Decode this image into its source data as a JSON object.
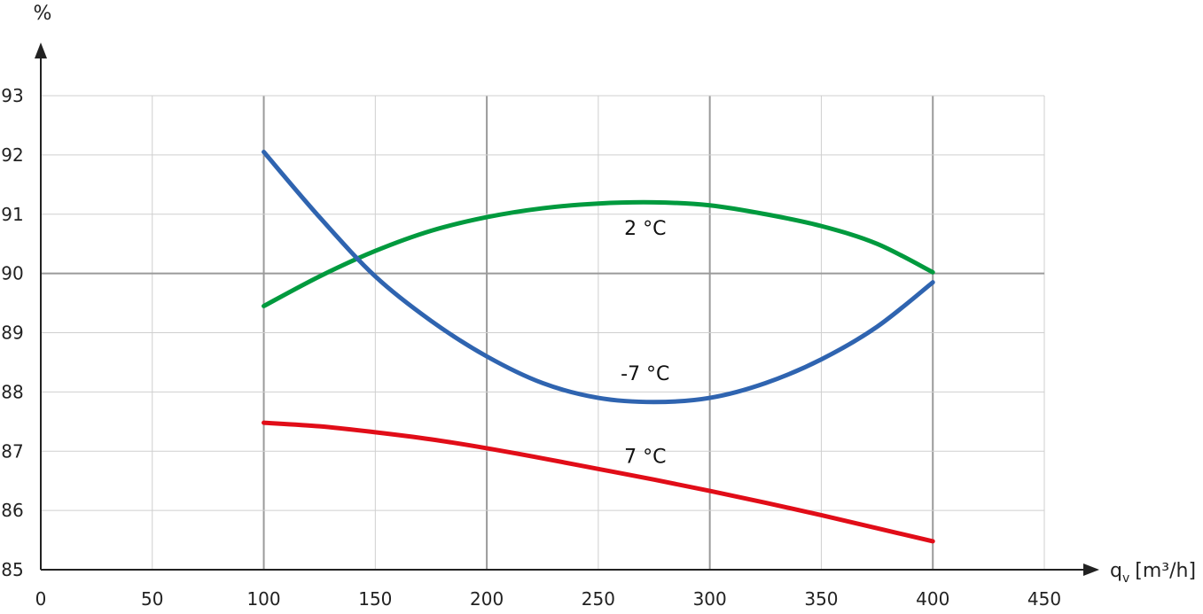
{
  "chart_data": {
    "type": "line",
    "ylabel": "%",
    "xlabel": "q",
    "xlabel_sub": "v",
    "xlabel_unit": "[m³/h]",
    "xlim": [
      0,
      450
    ],
    "ylim": [
      85,
      93
    ],
    "xticks": [
      0,
      50,
      100,
      150,
      200,
      250,
      300,
      350,
      400,
      450
    ],
    "yticks": [
      85,
      86,
      87,
      88,
      89,
      90,
      91,
      92,
      93
    ],
    "grid": true,
    "series": [
      {
        "label": "2 °C",
        "color": "#009a3e",
        "x": [
          100,
          125,
          150,
          175,
          200,
          225,
          250,
          275,
          300,
          325,
          350,
          375,
          400
        ],
        "y": [
          89.45,
          89.95,
          90.38,
          90.72,
          90.95,
          91.1,
          91.18,
          91.2,
          91.15,
          91.0,
          90.8,
          90.5,
          90.02
        ]
      },
      {
        "label": "-7 °C",
        "color": "#2f64b0",
        "x": [
          100,
          125,
          150,
          175,
          200,
          225,
          250,
          275,
          300,
          325,
          350,
          375,
          400
        ],
        "y": [
          92.05,
          90.95,
          89.95,
          89.2,
          88.6,
          88.15,
          87.9,
          87.83,
          87.9,
          88.15,
          88.55,
          89.1,
          89.85
        ]
      },
      {
        "label": "7 °C",
        "color": "#e10d18",
        "x": [
          100,
          125,
          150,
          175,
          200,
          225,
          250,
          275,
          300,
          325,
          350,
          375,
          400
        ],
        "y": [
          87.48,
          87.42,
          87.32,
          87.2,
          87.05,
          86.88,
          86.7,
          86.52,
          86.33,
          86.13,
          85.92,
          85.7,
          85.48
        ]
      }
    ]
  }
}
